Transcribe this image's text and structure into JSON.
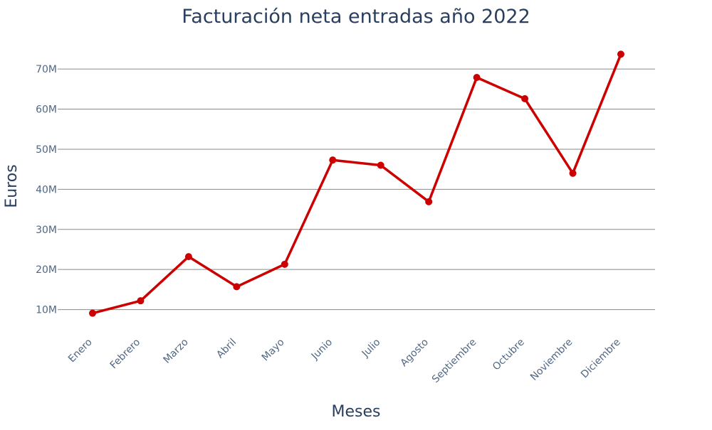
{
  "chart_data": {
    "type": "line",
    "title": "Facturación neta entradas año 2022",
    "xlabel": "Meses",
    "ylabel": "Euros",
    "categories": [
      "Enero",
      "Febrero",
      "Marzo",
      "Abril",
      "Mayo",
      "Junio",
      "Julio",
      "Agosto",
      "Septiembre",
      "Octubre",
      "Noviembre",
      "Diciembre"
    ],
    "series": [
      {
        "values": [
          9.1,
          12.2,
          23.2,
          15.7,
          21.3,
          47.3,
          46.0,
          36.9,
          67.9,
          62.6,
          44.0,
          73.7
        ],
        "color": "#cc0000"
      }
    ],
    "value_unit_multiplier": 1000000,
    "yticks": [
      "10M",
      "20M",
      "30M",
      "40M",
      "50M",
      "60M",
      "70M"
    ],
    "yticks_values": [
      10,
      20,
      30,
      40,
      50,
      60,
      70
    ],
    "ylim": [
      3.9,
      78.0
    ],
    "grid": true,
    "legend": "none",
    "colors": {
      "line": "#cc0000",
      "grid": "#8a8a8a",
      "text": "#2a3f5f",
      "tick_text": "#506784"
    }
  }
}
